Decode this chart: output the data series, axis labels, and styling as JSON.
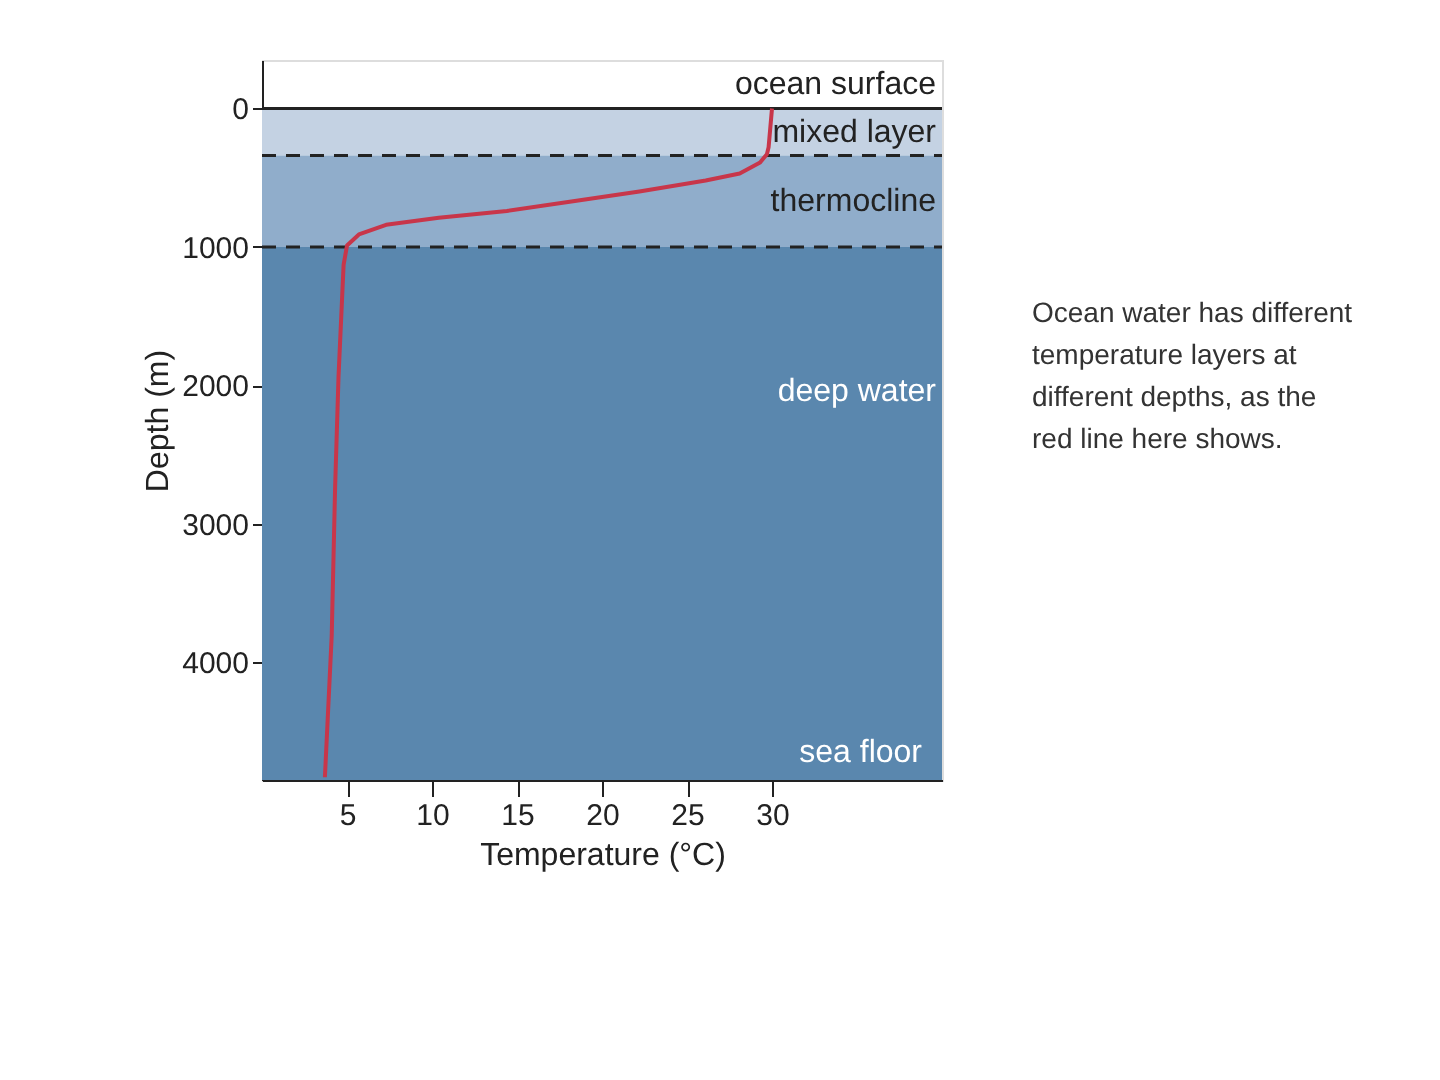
{
  "chart_data": {
    "type": "line",
    "xlabel": "Temperature (°C)",
    "ylabel": "Depth (m)",
    "x": [
      30,
      29.8,
      29.7,
      29.3,
      28.1,
      26.1,
      22.2,
      18.3,
      14.4,
      10.4,
      7.3,
      5.7,
      5,
      4.8,
      4.5,
      4.3,
      4.1,
      3.7
    ],
    "series": [
      {
        "color": "#c8364a",
        "values": [
          0,
          280,
          330,
          390,
          470,
          520,
          600,
          670,
          740,
          790,
          840,
          910,
          990,
          1130,
          1940,
          2740,
          3810,
          4830
        ]
      }
    ],
    "xlim": [
      0,
      40
    ],
    "xticks": [
      5,
      10,
      15,
      20,
      25,
      30
    ],
    "ylim": [
      4850,
      -350
    ],
    "yticks": [
      0,
      1000,
      2000,
      3000,
      4000
    ],
    "grid": false,
    "marker": "none",
    "line_style": "solid",
    "bands": [
      {
        "axis": "y",
        "from": 0,
        "to": 340,
        "label": "mixed layer",
        "color": "#c4d2e3"
      },
      {
        "axis": "y",
        "from": 340,
        "to": 1000,
        "label": "thermocline",
        "color": "#90adcb"
      },
      {
        "axis": "y",
        "from": 1000,
        "to": 4850,
        "label": "deep water",
        "color": "#5a87ae"
      }
    ],
    "ref_lines": [
      {
        "axis": "y",
        "value": 0,
        "label": "ocean surface",
        "line_style": "solid",
        "color": "#222222"
      },
      {
        "axis": "y",
        "value": 340,
        "line_style": "dashed",
        "color": "#222222"
      },
      {
        "axis": "y",
        "value": 1000,
        "line_style": "dashed",
        "color": "#222222"
      }
    ],
    "annotations": [
      "sea floor",
      "Ocean water has different temperature layers at different depths, as the red line here shows."
    ]
  }
}
